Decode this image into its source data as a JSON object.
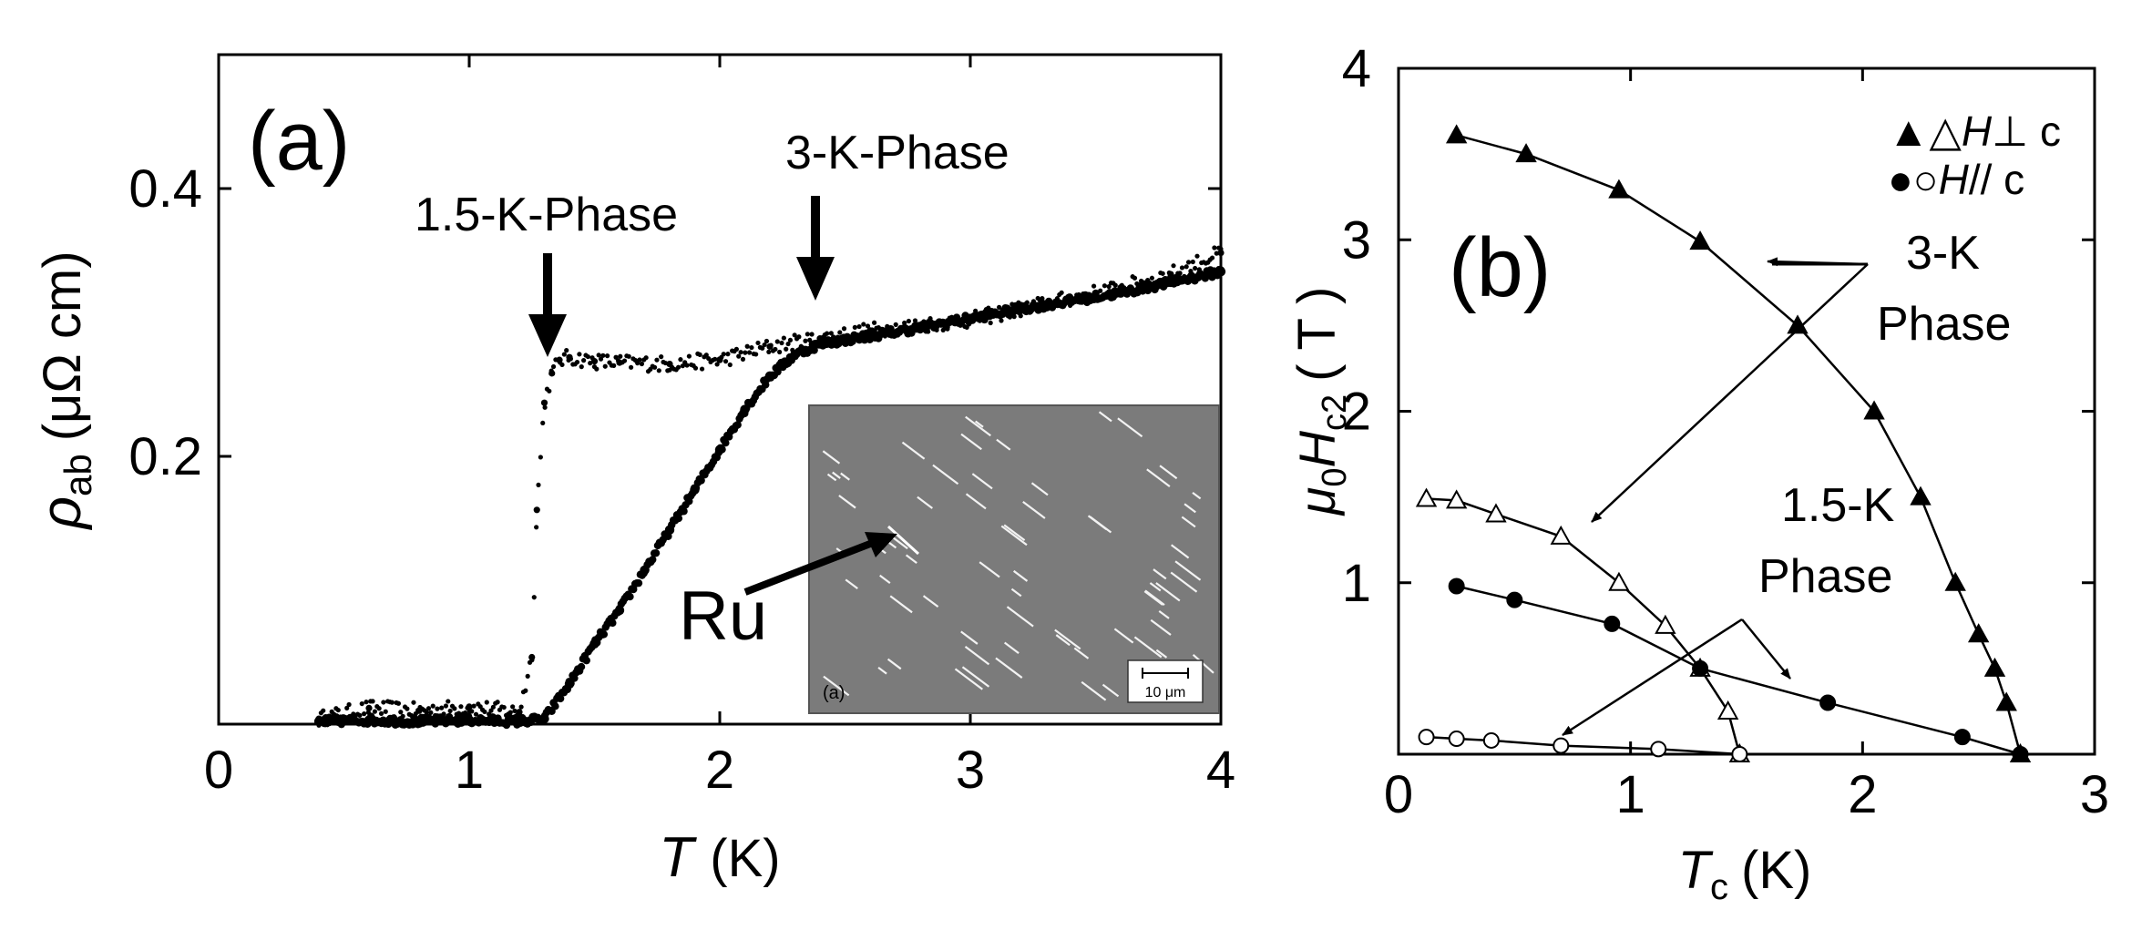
{
  "chart_data": [
    {
      "panel": "a",
      "type": "scatter",
      "panel_label": "(a)",
      "xlabel": "T",
      "xunit": "(K)",
      "ylabel_main": "ρ",
      "ylabel_sub": "ab",
      "yunit": "(μΩ cm)",
      "xlim": [
        0,
        4
      ],
      "ylim": [
        0,
        0.5
      ],
      "xticks": [
        0,
        1,
        2,
        3,
        4
      ],
      "xtick_labels": [
        "0",
        "1",
        "2",
        "3",
        "4"
      ],
      "yticks": [
        0.2,
        0.4
      ],
      "ytick_labels": [
        "0.2",
        "0.4"
      ],
      "series": [
        {
          "name": "1.5-K-Phase sample",
          "marker": "small dots",
          "x": [
            0.4,
            0.6,
            0.8,
            1.0,
            1.2,
            1.25,
            1.27,
            1.3,
            1.33,
            1.36,
            1.4,
            1.5,
            1.6,
            1.8,
            2.0,
            2.2,
            2.4,
            2.6,
            2.8,
            3.0,
            3.2,
            3.4,
            3.6,
            3.8,
            4.0
          ],
          "y": [
            0.004,
            0.012,
            0.01,
            0.013,
            0.009,
            0.05,
            0.16,
            0.24,
            0.262,
            0.272,
            0.274,
            0.271,
            0.27,
            0.269,
            0.272,
            0.282,
            0.288,
            0.294,
            0.298,
            0.302,
            0.31,
            0.318,
            0.326,
            0.336,
            0.352
          ]
        },
        {
          "name": "3-K-Phase sample",
          "marker": "large dots",
          "x": [
            0.4,
            0.6,
            0.8,
            1.0,
            1.2,
            1.3,
            1.4,
            1.5,
            1.6,
            1.7,
            1.8,
            1.9,
            2.0,
            2.1,
            2.2,
            2.3,
            2.4,
            2.6,
            2.8,
            3.0,
            3.2,
            3.4,
            3.6,
            3.8,
            4.0
          ],
          "y": [
            0.002,
            0.003,
            0.002,
            0.003,
            0.002,
            0.004,
            0.03,
            0.06,
            0.085,
            0.115,
            0.145,
            0.175,
            0.205,
            0.235,
            0.26,
            0.276,
            0.284,
            0.29,
            0.296,
            0.303,
            0.31,
            0.316,
            0.322,
            0.33,
            0.338
          ]
        }
      ],
      "annotations": {
        "phase_low": "1.5-K-Phase",
        "phase_high": "3-K-Phase",
        "ru_label": "Ru"
      },
      "inset": {
        "label": "(a)",
        "scale_bar": "10 μm"
      }
    },
    {
      "panel": "b",
      "type": "line",
      "panel_label": "(b)",
      "xlabel_main": "T",
      "xlabel_sub": "c",
      "xunit": "(K)",
      "ylabel_prefix": "μ",
      "ylabel_prefix_sub": "0",
      "ylabel_main": "H",
      "ylabel_sub": "c2",
      "yunit": "( T )",
      "xlim": [
        0,
        3
      ],
      "ylim": [
        0,
        4
      ],
      "xticks": [
        0,
        1,
        2,
        3
      ],
      "xtick_labels": [
        "0",
        "1",
        "2",
        "3"
      ],
      "yticks": [
        1,
        2,
        3,
        4
      ],
      "ytick_labels": [
        "1",
        "2",
        "3",
        "4"
      ],
      "series": [
        {
          "name": "3-K H ⊥ c",
          "marker": "filled-triangle",
          "x": [
            0.25,
            0.55,
            0.95,
            1.3,
            1.72,
            2.05,
            2.25,
            2.4,
            2.5,
            2.57,
            2.62,
            2.68
          ],
          "y": [
            3.61,
            3.5,
            3.29,
            2.99,
            2.5,
            2.0,
            1.5,
            1.0,
            0.7,
            0.5,
            0.3,
            0.0
          ]
        },
        {
          "name": "1.5-K H ⊥ c",
          "marker": "open-triangle",
          "x": [
            0.12,
            0.25,
            0.42,
            0.7,
            0.95,
            1.15,
            1.3,
            1.42,
            1.47
          ],
          "y": [
            1.49,
            1.48,
            1.4,
            1.27,
            1.0,
            0.75,
            0.5,
            0.25,
            0.0
          ]
        },
        {
          "name": "3-K H // c",
          "marker": "filled-circle",
          "x": [
            0.25,
            0.5,
            0.92,
            1.3,
            1.85,
            2.43,
            2.68
          ],
          "y": [
            0.98,
            0.9,
            0.76,
            0.5,
            0.3,
            0.1,
            0.0
          ]
        },
        {
          "name": "1.5-K H // c",
          "marker": "open-circle",
          "x": [
            0.12,
            0.25,
            0.4,
            0.7,
            1.12,
            1.47
          ],
          "y": [
            0.1,
            0.09,
            0.08,
            0.05,
            0.03,
            0.0
          ]
        }
      ],
      "legend": {
        "row1_symbols": "▲△",
        "row1_H": "H",
        "row1_rel": "⊥ c",
        "row2_symbols": "●○",
        "row2_H": "H",
        "row2_rel": "// c"
      },
      "annotations": {
        "phase_high_line1": "3-K",
        "phase_high_line2": "Phase",
        "phase_low_line1": "1.5-K",
        "phase_low_line2": "Phase"
      }
    }
  ]
}
